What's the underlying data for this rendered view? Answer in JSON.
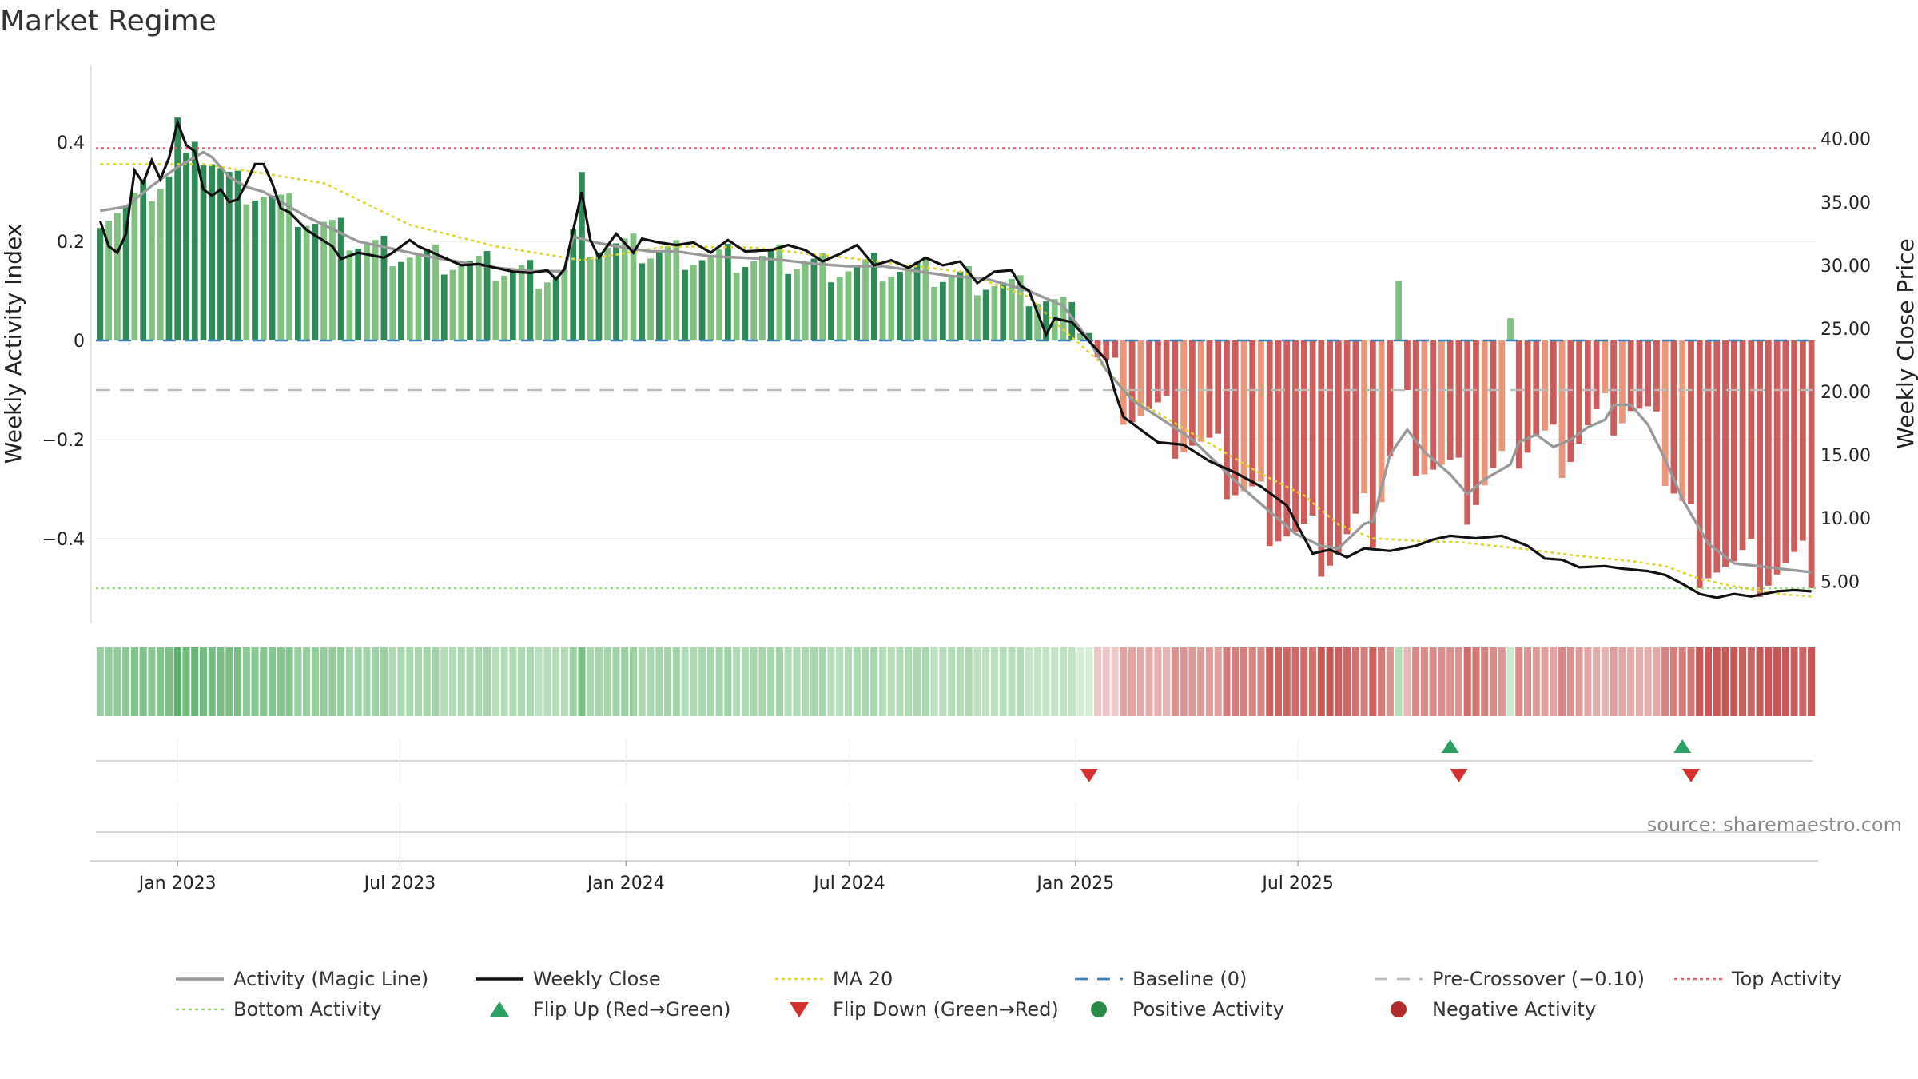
{
  "chart_data": {
    "type": "bar",
    "title": "Market Regime",
    "source": "source: sharemaestro.com",
    "ylabel_left": "Weekly Activity Index",
    "ylabel_right": "Weekly Close Price",
    "left_ticks": [
      "0.4",
      "0.2",
      "0",
      "−0.2",
      "−0.4"
    ],
    "left_tick_values": [
      0.4,
      0.2,
      0,
      -0.2,
      -0.4
    ],
    "right_ticks": [
      "40.00",
      "35.00",
      "30.00",
      "25.00",
      "20.00",
      "15.00",
      "10.00",
      "5.00"
    ],
    "right_tick_values": [
      40,
      35,
      30,
      25,
      20,
      15,
      10,
      5
    ],
    "x_ticks": [
      "Jan 2023",
      "Jul 2023",
      "Jan 2024",
      "Jul 2024",
      "Jan 2025",
      "Jul 2025"
    ],
    "x_tick_dates": [
      "2023-01-01",
      "2023-07-01",
      "2024-01-01",
      "2024-07-01",
      "2025-01-01",
      "2025-07-01"
    ],
    "ylim_left": [
      -0.555,
      0.555
    ],
    "ylim_right": [
      2.3,
      45.8
    ],
    "start_date": "2022-10-30",
    "week_count": 200,
    "reference_lines": {
      "top_activity": 0.388,
      "bottom_activity": -0.5,
      "baseline": 0,
      "pre_crossover": -0.1
    },
    "activity_anchors": [
      [
        0,
        0.262
      ],
      [
        3,
        0.27
      ],
      [
        6,
        0.312
      ],
      [
        9,
        0.35
      ],
      [
        12,
        0.38
      ],
      [
        13,
        0.37
      ],
      [
        15,
        0.33
      ],
      [
        17,
        0.31
      ],
      [
        19,
        0.3
      ],
      [
        21,
        0.28
      ],
      [
        24,
        0.25
      ],
      [
        27,
        0.225
      ],
      [
        30,
        0.2
      ],
      [
        34,
        0.185
      ],
      [
        38,
        0.17
      ],
      [
        42,
        0.158
      ],
      [
        46,
        0.147
      ],
      [
        50,
        0.14
      ],
      [
        54,
        0.14
      ],
      [
        55,
        0.21
      ],
      [
        57,
        0.2
      ],
      [
        60,
        0.19
      ],
      [
        64,
        0.18
      ],
      [
        67,
        0.18
      ],
      [
        71,
        0.17
      ],
      [
        75,
        0.167
      ],
      [
        79,
        0.163
      ],
      [
        83,
        0.155
      ],
      [
        87,
        0.15
      ],
      [
        91,
        0.15
      ],
      [
        95,
        0.14
      ],
      [
        99,
        0.13
      ],
      [
        103,
        0.125
      ],
      [
        108,
        0.1
      ],
      [
        112,
        0.07
      ],
      [
        115,
        0.0
      ],
      [
        117,
        -0.06
      ],
      [
        120,
        -0.12
      ],
      [
        124,
        -0.165
      ],
      [
        127,
        -0.2
      ],
      [
        130,
        -0.25
      ],
      [
        133,
        -0.3
      ],
      [
        136,
        -0.345
      ],
      [
        139,
        -0.39
      ],
      [
        142,
        -0.415
      ],
      [
        144,
        -0.42
      ],
      [
        147,
        -0.37
      ],
      [
        148,
        -0.365
      ],
      [
        150,
        -0.23
      ],
      [
        152,
        -0.18
      ],
      [
        154,
        -0.225
      ],
      [
        157,
        -0.27
      ],
      [
        159,
        -0.31
      ],
      [
        161,
        -0.28
      ],
      [
        164,
        -0.25
      ],
      [
        165,
        -0.205
      ],
      [
        167,
        -0.19
      ],
      [
        169,
        -0.215
      ],
      [
        171,
        -0.2
      ],
      [
        173,
        -0.175
      ],
      [
        175,
        -0.16
      ],
      [
        176,
        -0.13
      ],
      [
        178,
        -0.13
      ],
      [
        180,
        -0.17
      ],
      [
        182,
        -0.24
      ],
      [
        184,
        -0.32
      ],
      [
        187,
        -0.41
      ],
      [
        190,
        -0.45
      ],
      [
        200,
        -0.47
      ]
    ],
    "close_anchors": [
      [
        0,
        33.5
      ],
      [
        1,
        31.5
      ],
      [
        2,
        31.0
      ],
      [
        3,
        32.5
      ],
      [
        4,
        37.5
      ],
      [
        5,
        36.5
      ],
      [
        6,
        38.3
      ],
      [
        7,
        36.8
      ],
      [
        8,
        38.5
      ],
      [
        9,
        41.3
      ],
      [
        10,
        39.5
      ],
      [
        11,
        39.0
      ],
      [
        12,
        36.0
      ],
      [
        13,
        35.5
      ],
      [
        14,
        36.0
      ],
      [
        15,
        35.0
      ],
      [
        16,
        35.2
      ],
      [
        17,
        36.5
      ],
      [
        18,
        38.0
      ],
      [
        19,
        38.0
      ],
      [
        20,
        36.5
      ],
      [
        21,
        34.5
      ],
      [
        22,
        34.2
      ],
      [
        24,
        32.8
      ],
      [
        27,
        31.5
      ],
      [
        28,
        30.5
      ],
      [
        30,
        31.0
      ],
      [
        33,
        30.6
      ],
      [
        34,
        31.0
      ],
      [
        36,
        32.0
      ],
      [
        37,
        31.5
      ],
      [
        38,
        31.2
      ],
      [
        40,
        30.6
      ],
      [
        42,
        30.0
      ],
      [
        44,
        30.1
      ],
      [
        46,
        29.8
      ],
      [
        48,
        29.5
      ],
      [
        50,
        29.4
      ],
      [
        52,
        29.6
      ],
      [
        53,
        28.9
      ],
      [
        54,
        29.7
      ],
      [
        56,
        35.8
      ],
      [
        57,
        32.0
      ],
      [
        58,
        30.6
      ],
      [
        60,
        32.5
      ],
      [
        62,
        31.0
      ],
      [
        63,
        32.1
      ],
      [
        65,
        31.8
      ],
      [
        67,
        31.6
      ],
      [
        69,
        31.8
      ],
      [
        71,
        31.0
      ],
      [
        73,
        32.0
      ],
      [
        75,
        31.1
      ],
      [
        78,
        31.2
      ],
      [
        80,
        31.6
      ],
      [
        82,
        31.2
      ],
      [
        84,
        30.3
      ],
      [
        86,
        30.9
      ],
      [
        88,
        31.6
      ],
      [
        90,
        30.0
      ],
      [
        92,
        30.4
      ],
      [
        94,
        29.8
      ],
      [
        96,
        30.6
      ],
      [
        98,
        30.0
      ],
      [
        100,
        30.3
      ],
      [
        102,
        28.6
      ],
      [
        104,
        29.5
      ],
      [
        106,
        29.6
      ],
      [
        107,
        28.4
      ],
      [
        108,
        28.0
      ],
      [
        110,
        24.5
      ],
      [
        111,
        25.8
      ],
      [
        113,
        25.5
      ],
      [
        115,
        24.0
      ],
      [
        117,
        22.5
      ],
      [
        118,
        20.0
      ],
      [
        119,
        18.0
      ],
      [
        121,
        17.0
      ],
      [
        123,
        16.0
      ],
      [
        126,
        15.8
      ],
      [
        129,
        14.5
      ],
      [
        132,
        13.6
      ],
      [
        135,
        12.5
      ],
      [
        138,
        11.0
      ],
      [
        141,
        7.2
      ],
      [
        143,
        7.5
      ],
      [
        145,
        6.9
      ],
      [
        147,
        7.6
      ],
      [
        150,
        7.4
      ],
      [
        153,
        7.8
      ],
      [
        155,
        8.3
      ],
      [
        157,
        8.6
      ],
      [
        160,
        8.4
      ],
      [
        163,
        8.6
      ],
      [
        166,
        7.8
      ],
      [
        168,
        6.8
      ],
      [
        170,
        6.7
      ],
      [
        172,
        6.1
      ],
      [
        175,
        6.2
      ],
      [
        177,
        6.0
      ],
      [
        180,
        5.8
      ],
      [
        182,
        5.5
      ],
      [
        184,
        4.8
      ],
      [
        186,
        4.0
      ],
      [
        188,
        3.7
      ],
      [
        190,
        4.0
      ],
      [
        192,
        3.8
      ],
      [
        195,
        4.2
      ],
      [
        197,
        4.3
      ],
      [
        199,
        4.2
      ]
    ],
    "ma20_anchors": [
      [
        0,
        38.0
      ],
      [
        12,
        38.0
      ],
      [
        26,
        36.5
      ],
      [
        36,
        33.2
      ],
      [
        46,
        31.5
      ],
      [
        56,
        30.4
      ],
      [
        66,
        31.5
      ],
      [
        76,
        31.4
      ],
      [
        88,
        30.5
      ],
      [
        100,
        29.5
      ],
      [
        108,
        27.5
      ],
      [
        111,
        25.5
      ],
      [
        116,
        22.5
      ],
      [
        120,
        19.5
      ],
      [
        125,
        17.5
      ],
      [
        130,
        15.5
      ],
      [
        135,
        13.5
      ],
      [
        140,
        11.8
      ],
      [
        144,
        9.5
      ],
      [
        148,
        8.4
      ],
      [
        153,
        8.2
      ],
      [
        158,
        8.1
      ],
      [
        165,
        7.6
      ],
      [
        172,
        7.0
      ],
      [
        178,
        6.6
      ],
      [
        182,
        6.2
      ],
      [
        186,
        5.2
      ],
      [
        190,
        4.6
      ],
      [
        195,
        4.0
      ],
      [
        199,
        3.8
      ]
    ],
    "series": [
      {
        "name": "Activity (Magic Line)"
      },
      {
        "name": "Weekly Close"
      },
      {
        "name": "MA 20"
      }
    ],
    "flips": {
      "up_weeks": [
        157,
        184
      ],
      "down_weeks": [
        115,
        158,
        185
      ]
    },
    "legend": [
      {
        "label": "Activity (Magic Line)",
        "kind": "line",
        "color": "#999999"
      },
      {
        "label": "Weekly Close",
        "kind": "line",
        "color": "#111111"
      },
      {
        "label": "MA 20",
        "kind": "dotted",
        "color": "#e0d430"
      },
      {
        "label": "Baseline (0)",
        "kind": "dashed",
        "color": "#3c82b4"
      },
      {
        "label": "Pre-Crossover (−0.10)",
        "kind": "dashed",
        "color": "#bbbbbb"
      },
      {
        "label": "Top Activity",
        "kind": "dotted",
        "color": "#e0607a"
      },
      {
        "label": "Bottom Activity",
        "kind": "dotted",
        "color": "#9bd87a"
      },
      {
        "label": "Flip Up (Red→Green)",
        "kind": "tri-up",
        "color": "#2ca062"
      },
      {
        "label": "Flip Down (Green→Red)",
        "kind": "tri-down",
        "color": "#d62f2f"
      },
      {
        "label": "Positive Activity",
        "kind": "dot",
        "color": "#2a8a45"
      },
      {
        "label": "Negative Activity",
        "kind": "dot",
        "color": "#b22a2a"
      }
    ],
    "colors": {
      "pos_dark": "#2e8b57",
      "pos_light": "#80c080",
      "neg_dark": "#cd5c5c",
      "neg_light": "#e9967a",
      "top_line": "#e0607a",
      "bottom_line": "#9bd87a",
      "baseline": "#3c82b4",
      "pre_cross": "#bbbbbb",
      "ma": "#e0d430",
      "magic": "#999999",
      "close": "#111111"
    }
  }
}
